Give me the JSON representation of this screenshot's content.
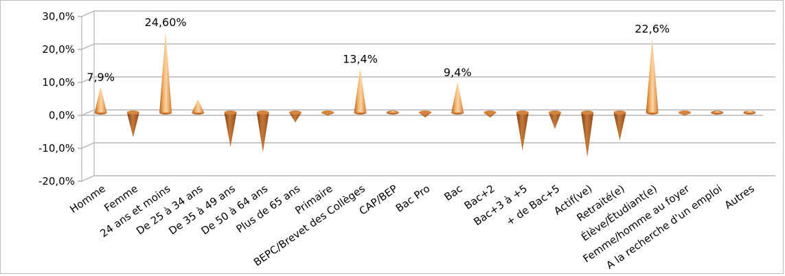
{
  "chart_data": {
    "type": "bar",
    "title": "",
    "xlabel": "",
    "ylabel": "",
    "ylim": [
      -20,
      30
    ],
    "y_ticks": [
      "30,0%",
      "20,0%",
      "10,0%",
      "0,0%",
      "-10,0%",
      "-20,0%"
    ],
    "grid": true,
    "legend": "none",
    "bar_shape": "cone",
    "categories": [
      "Homme",
      "Femme",
      "24 ans et moins",
      "De 25 à 34 ans",
      "De 35 à 49 ans",
      "De 50 à 64 ans",
      "Plus de 65 ans",
      "Primaire",
      "BEPC/Brevet des Collèges",
      "CAP/BEP",
      "Bac Pro",
      "Bac",
      "Bac+2",
      "Bac+3 à +5",
      "+ de Bac+5",
      "Actif(ve)",
      "Retraité(e)",
      "Élève/Étudiant(e)",
      "Femme/homme au foyer",
      "A la recherche d'un emploi",
      "Autres"
    ],
    "values": [
      7.9,
      -7.5,
      24.6,
      4.0,
      -10.5,
      -12.0,
      -3.0,
      -1.0,
      13.4,
      0.5,
      -1.5,
      9.4,
      -1.5,
      -11.5,
      -5.0,
      -13.5,
      -8.5,
      22.6,
      -1.0,
      0.5,
      0.8
    ],
    "data_labels": [
      {
        "index": 0,
        "text": "7,9%"
      },
      {
        "index": 2,
        "text": "24,60%"
      },
      {
        "index": 8,
        "text": "13,4%"
      },
      {
        "index": 11,
        "text": "9,4%"
      },
      {
        "index": 17,
        "text": "22,6%"
      }
    ],
    "colors": {
      "cone_light": "#f8c68a",
      "cone_mid": "#f0a050",
      "cone_dark": "#a8551a",
      "cone_neg_dark": "#7a4018",
      "grid": "#b5b5b5",
      "wall": "#d0d0d0"
    }
  }
}
